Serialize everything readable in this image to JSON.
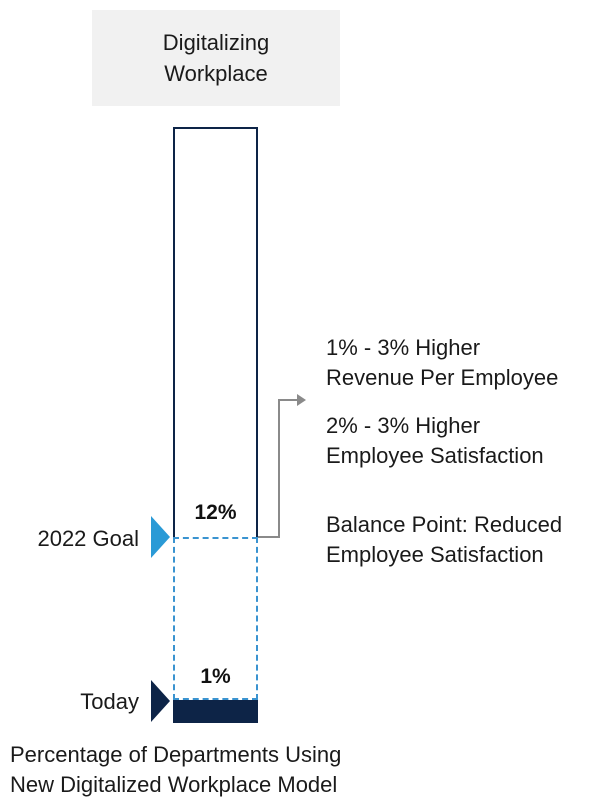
{
  "header": {
    "line1": "Digitalizing",
    "line2": "Workplace"
  },
  "bar": {
    "goal_value_label": "12%",
    "today_value_label": "1%"
  },
  "markers": {
    "goal_label": "2022 Goal",
    "today_label": "Today",
    "goal_color": "#2a9ad6",
    "today_color": "#0d2447"
  },
  "benefits": [
    {
      "line1": "1% - 3% Higher",
      "line2": "Revenue Per Employee"
    },
    {
      "line1": "2% - 3% Higher",
      "line2": "Employee Satisfaction"
    },
    {
      "line1": "Balance Point: Reduced",
      "line2": "Employee Satisfaction"
    }
  ],
  "footer": {
    "line1": "Percentage of Departments Using",
    "line2": "New Digitalized Workplace Model"
  },
  "colors": {
    "navy": "#0d2447",
    "blue": "#2a9ad6",
    "header_bg": "#f1f1f1",
    "connector": "#8a8a8a"
  }
}
